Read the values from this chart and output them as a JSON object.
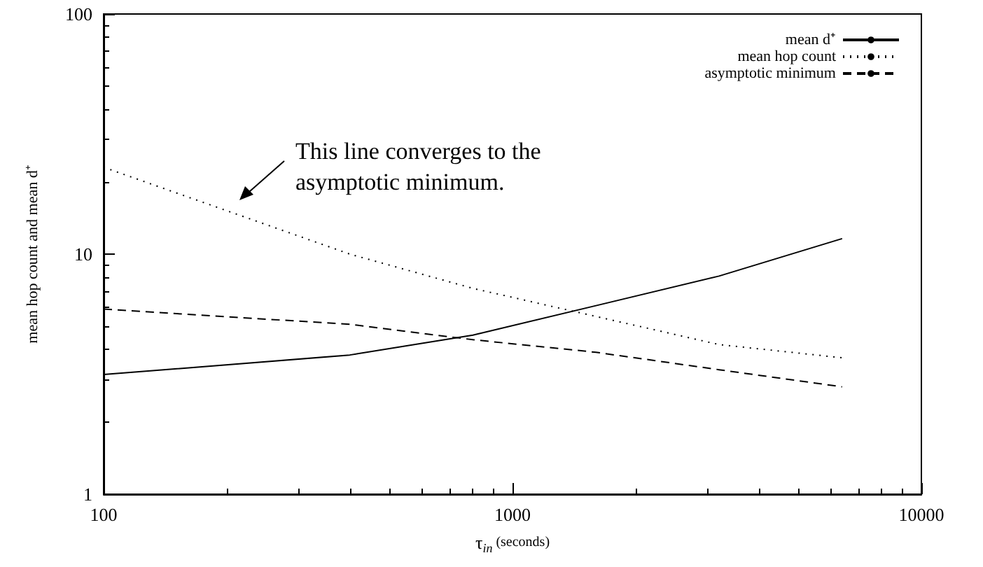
{
  "chart_data": {
    "type": "line",
    "xlabel": "τ$_{in}$ (seconds)",
    "ylabel": "mean hop count and mean d⁺",
    "log": "xy",
    "xlim": [
      100,
      10000
    ],
    "xticks": [
      100,
      1000,
      10000
    ],
    "ylim": [
      1,
      100
    ],
    "yticks": [
      1,
      10,
      100
    ],
    "grid": false,
    "legend": "top right",
    "marker": "none",
    "x": [
      100,
      400,
      800,
      1600,
      3200,
      6400
    ],
    "series": [
      {
        "name": "mean d⁺",
        "color": "#000000",
        "line_style": "solid",
        "values": [
          3.15,
          3.8,
          4.6,
          6.1,
          8.1,
          11.6
        ]
      },
      {
        "name": "mean hop count",
        "color": "#000000",
        "line_style": "dotted",
        "values": [
          23,
          10,
          7.2,
          5.5,
          4.2,
          3.7
        ]
      },
      {
        "name": "asymptotic minimum",
        "color": "#000000",
        "line_style": "dashed",
        "values": [
          5.9,
          5.1,
          4.4,
          3.9,
          3.3,
          2.8
        ]
      }
    ],
    "annotations": [
      "This line converges to the asymptotic minimum."
    ]
  }
}
